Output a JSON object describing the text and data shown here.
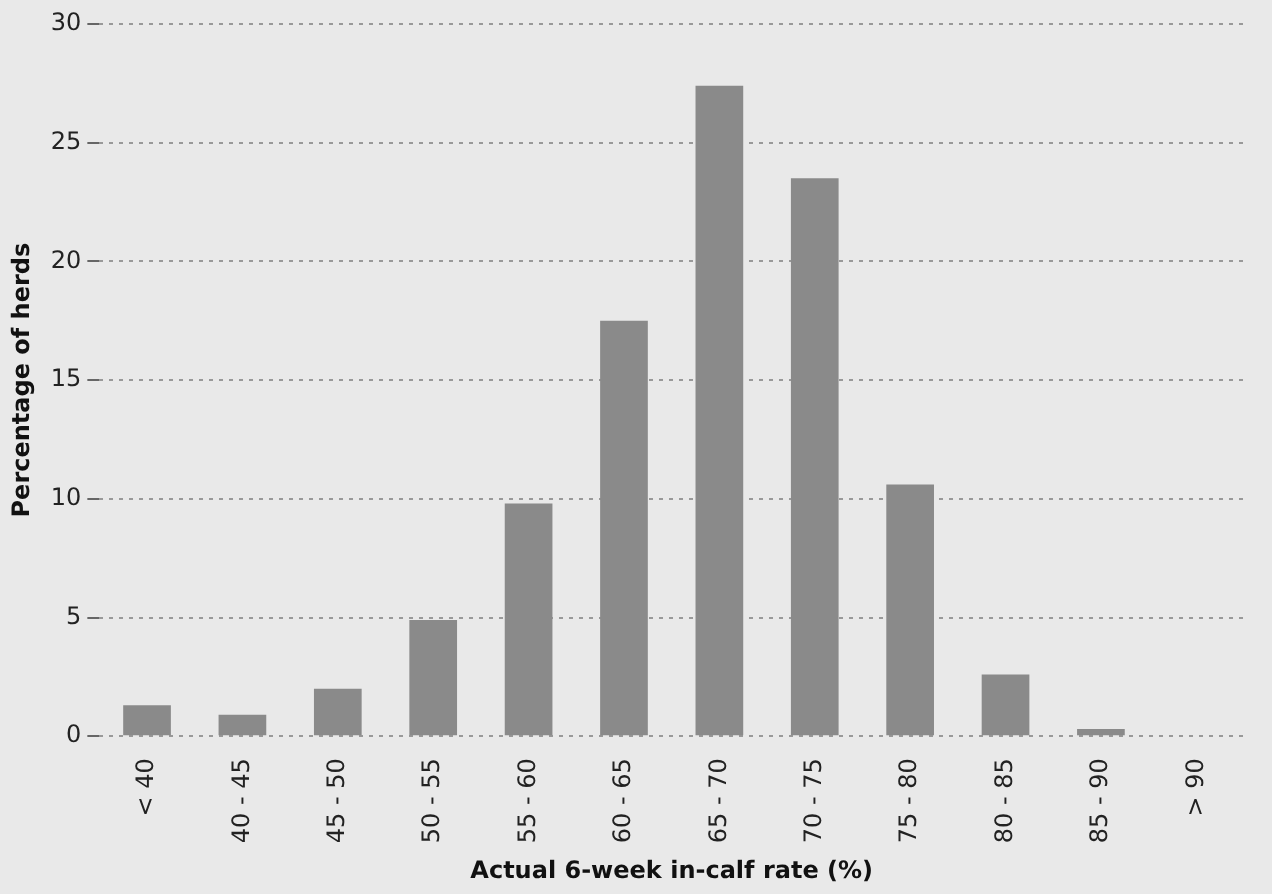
{
  "chart_data": {
    "type": "bar",
    "xlabel": "Actual 6-week in-calf rate (%)",
    "ylabel": "Percentage of herds",
    "categories": [
      "< 40",
      "40 - 45",
      "45 - 50",
      "50 - 55",
      "55 - 60",
      "60 - 65",
      "65 - 70",
      "70 - 75",
      "75 - 80",
      "80 - 85",
      "85 - 90",
      "> 90"
    ],
    "values": [
      1.3,
      0.9,
      2.0,
      4.9,
      9.8,
      17.5,
      27.4,
      23.5,
      10.6,
      2.6,
      0.3,
      0
    ],
    "color": "#8a8a8a",
    "ylim": [
      0,
      30
    ],
    "yticks": [
      0,
      5,
      10,
      15,
      20,
      25,
      30
    ],
    "grid": "y"
  }
}
